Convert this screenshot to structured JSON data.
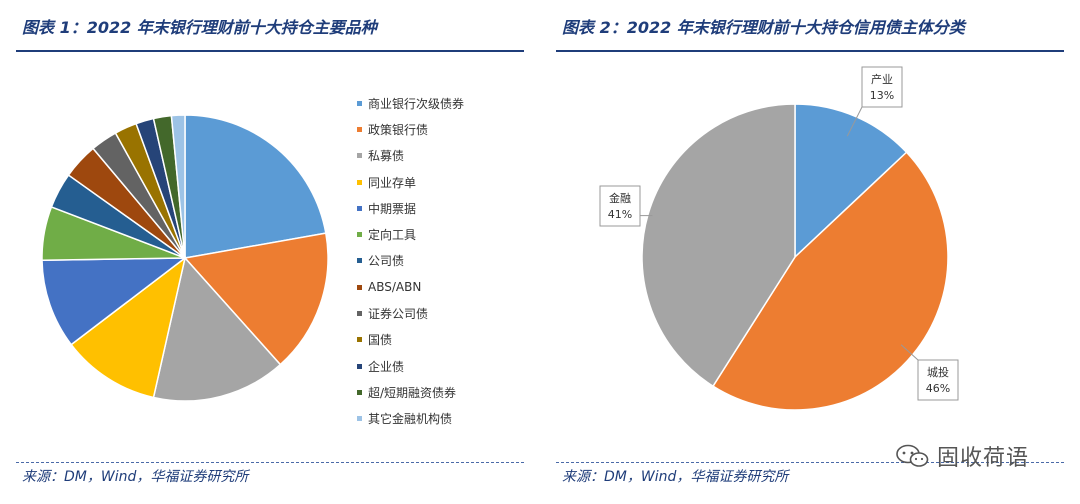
{
  "charts": {
    "left": {
      "title": "图表 1：2022 年末银行理财前十大持仓主要品种",
      "source": "来源：DM，Wind，华福证券研究所"
    },
    "right": {
      "title": "图表 2：2022 年末银行理财前十大持仓信用债主体分类",
      "source": "来源：DM，Wind，华福证券研究所"
    }
  },
  "watermark": {
    "text": "固收荷语",
    "icon": "wechat-icon"
  },
  "colors": {
    "title": "#1f3d7a",
    "rule": "#1f3d7a",
    "slice_border": "#ffffff",
    "callout_border": "#999999"
  },
  "chart_data": [
    {
      "type": "pie",
      "title": "",
      "start_angle_deg": 0,
      "direction": "clockwise",
      "data_labels": false,
      "legend_position": "right",
      "categories": [
        "商业银行次级债券",
        "政策银行债",
        "私募债",
        "同业存单",
        "中期票据",
        "定向工具",
        "公司债",
        "ABS/ABN",
        "证券公司债",
        "国债",
        "企业债",
        "超/短期融资债券",
        "其它金融机构债"
      ],
      "values": [
        22,
        16,
        15,
        11,
        10,
        6,
        4,
        4,
        3,
        2.5,
        2,
        2,
        1.5
      ],
      "colors": [
        "#5b9bd5",
        "#ed7d31",
        "#a5a5a5",
        "#ffc000",
        "#4472c4",
        "#70ad47",
        "#255e91",
        "#9e480e",
        "#636363",
        "#997300",
        "#264478",
        "#43682b",
        "#9dc3e6"
      ]
    },
    {
      "type": "pie",
      "title": "",
      "start_angle_deg": 0,
      "direction": "clockwise",
      "data_labels": true,
      "legend_position": "none",
      "categories": [
        "产业",
        "城投",
        "金融"
      ],
      "values": [
        13,
        46,
        41
      ],
      "value_labels": [
        "13%",
        "46%",
        "41%"
      ],
      "colors": [
        "#5b9bd5",
        "#ed7d31",
        "#a5a5a5"
      ]
    }
  ]
}
